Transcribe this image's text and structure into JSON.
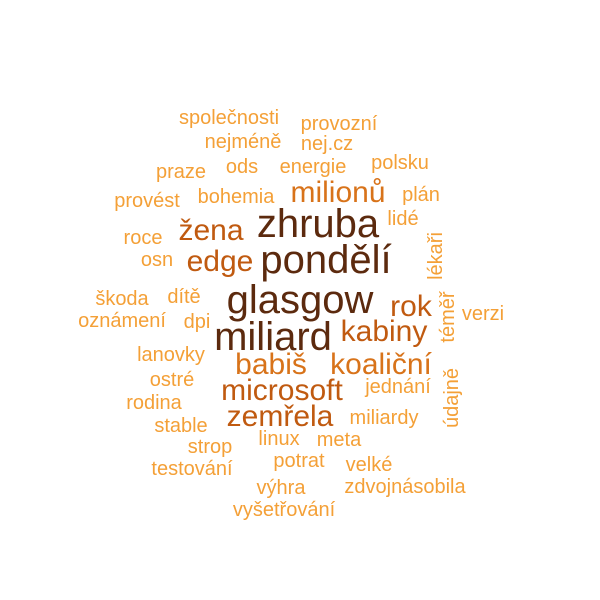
{
  "words": [
    {
      "text": "společnosti",
      "color": "#f4a037"
    },
    {
      "text": "provozní",
      "color": "#f4a037"
    },
    {
      "text": "nejméně",
      "color": "#f4a037"
    },
    {
      "text": "nej.cz",
      "color": "#f4a037"
    },
    {
      "text": "praze",
      "color": "#f4a037"
    },
    {
      "text": "ods",
      "color": "#f4a037"
    },
    {
      "text": "energie",
      "color": "#f4a037"
    },
    {
      "text": "polsku",
      "color": "#f4a037"
    },
    {
      "text": "provést",
      "color": "#f4a037"
    },
    {
      "text": "bohemia",
      "color": "#f4a037"
    },
    {
      "text": "milionů",
      "color": "#d8731a"
    },
    {
      "text": "plán",
      "color": "#f4a037"
    },
    {
      "text": "žena",
      "color": "#c05a10"
    },
    {
      "text": "zhruba",
      "color": "#5c2a0e"
    },
    {
      "text": "lidé",
      "color": "#f4a037"
    },
    {
      "text": "roce",
      "color": "#f4a037"
    },
    {
      "text": "osn",
      "color": "#f4a037"
    },
    {
      "text": "edge",
      "color": "#c05a10"
    },
    {
      "text": "pondělí",
      "color": "#5c2a0e"
    },
    {
      "text": "lékaři",
      "color": "#f4a037"
    },
    {
      "text": "škoda",
      "color": "#f4a037"
    },
    {
      "text": "dítě",
      "color": "#f4a037"
    },
    {
      "text": "glasgow",
      "color": "#5c2a0e"
    },
    {
      "text": "rok",
      "color": "#c05a10"
    },
    {
      "text": "téměř",
      "color": "#f4a037"
    },
    {
      "text": "oznámení",
      "color": "#f4a037"
    },
    {
      "text": "dpi",
      "color": "#f4a037"
    },
    {
      "text": "verzi",
      "color": "#f4a037"
    },
    {
      "text": "miliard",
      "color": "#5c2a0e"
    },
    {
      "text": "kabiny",
      "color": "#c05a10"
    },
    {
      "text": "lanovky",
      "color": "#f4a037"
    },
    {
      "text": "babiš",
      "color": "#d8731a"
    },
    {
      "text": "koaliční",
      "color": "#d8731a"
    },
    {
      "text": "ostré",
      "color": "#f4a037"
    },
    {
      "text": "microsoft",
      "color": "#c05a10"
    },
    {
      "text": "jednání",
      "color": "#f4a037"
    },
    {
      "text": "údajně",
      "color": "#f4a037"
    },
    {
      "text": "rodina",
      "color": "#f4a037"
    },
    {
      "text": "zemřela",
      "color": "#c05a10"
    },
    {
      "text": "miliardy",
      "color": "#f4a037"
    },
    {
      "text": "stable",
      "color": "#f4a037"
    },
    {
      "text": "linux",
      "color": "#f4a037"
    },
    {
      "text": "meta",
      "color": "#f4a037"
    },
    {
      "text": "strop",
      "color": "#f4a037"
    },
    {
      "text": "potrat",
      "color": "#f4a037"
    },
    {
      "text": "testování",
      "color": "#f4a037"
    },
    {
      "text": "velké",
      "color": "#f4a037"
    },
    {
      "text": "výhra",
      "color": "#f4a037"
    },
    {
      "text": "zdvojnásobila",
      "color": "#f4a037"
    },
    {
      "text": "vyšetřování",
      "color": "#f4a037"
    }
  ]
}
